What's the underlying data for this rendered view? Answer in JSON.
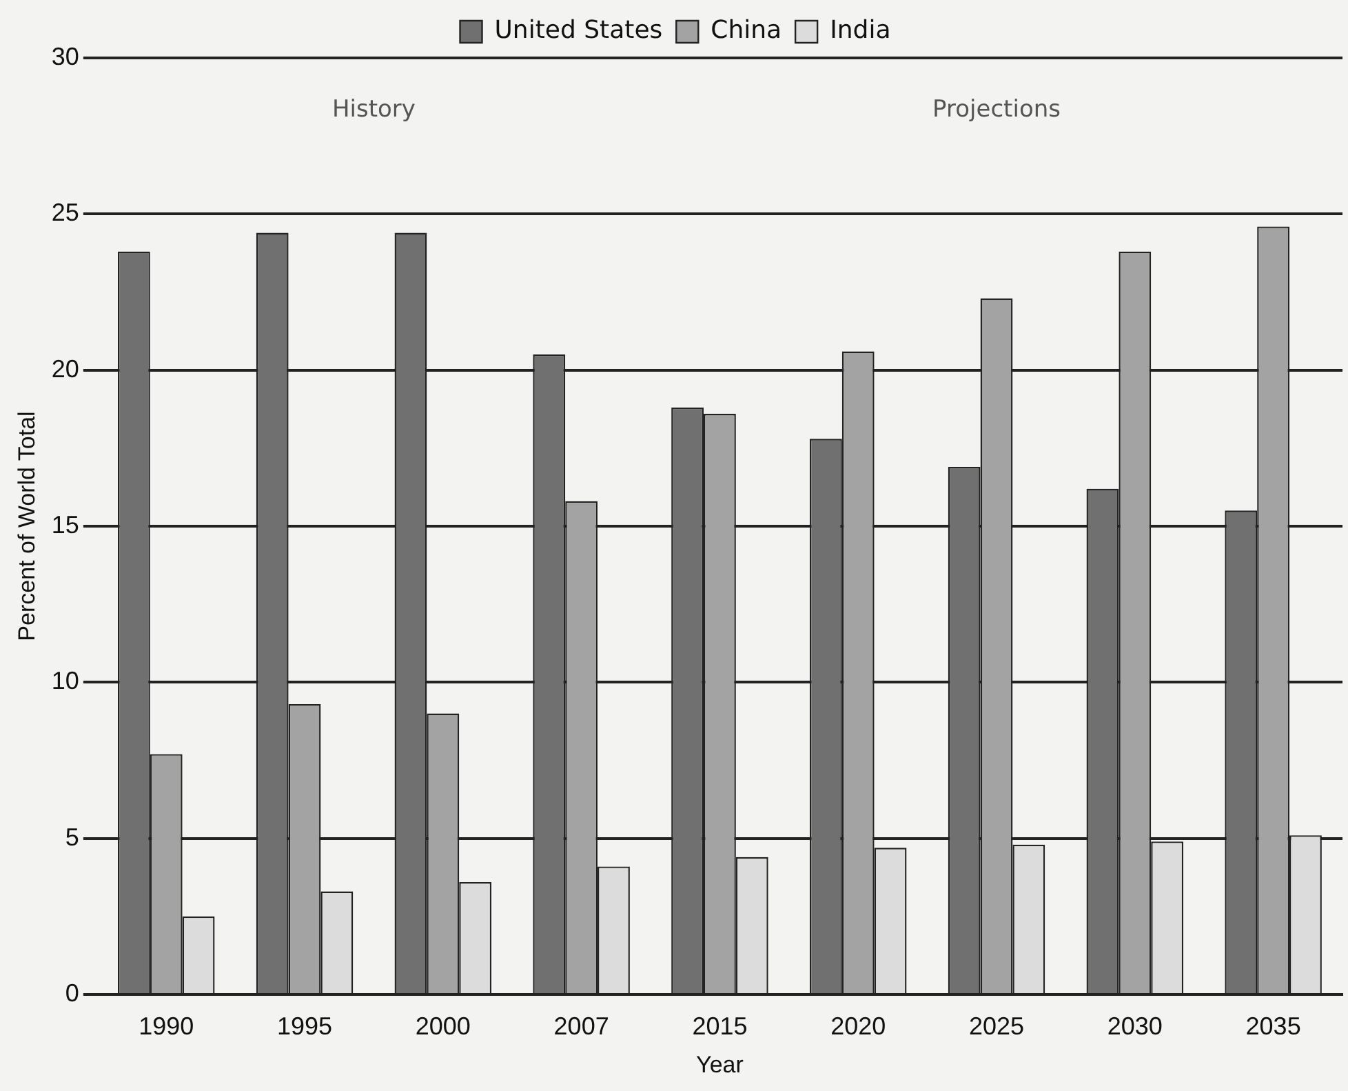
{
  "chart_data": {
    "type": "bar",
    "xlabel": "Year",
    "ylabel": "Percent of World Total",
    "categories": [
      "1990",
      "1995",
      "2000",
      "2007",
      "2015",
      "2020",
      "2025",
      "2030",
      "2035"
    ],
    "series": [
      {
        "name": "United States",
        "color": "#707070",
        "values": [
          23.8,
          24.4,
          24.4,
          20.5,
          18.8,
          17.8,
          16.9,
          16.2,
          15.5
        ]
      },
      {
        "name": "China",
        "color": "#a3a3a3",
        "values": [
          7.7,
          9.3,
          9.0,
          15.8,
          18.6,
          20.6,
          22.3,
          23.8,
          24.6
        ]
      },
      {
        "name": "India",
        "color": "#dcdcdc",
        "values": [
          2.5,
          3.3,
          3.6,
          4.1,
          4.4,
          4.7,
          4.8,
          4.9,
          5.1
        ]
      }
    ],
    "ylim": [
      0,
      30
    ],
    "yticks": [
      0,
      5,
      10,
      15,
      20,
      25,
      30
    ],
    "grid": "y",
    "legend": "top",
    "annotations": [
      "History",
      "Projections"
    ]
  }
}
